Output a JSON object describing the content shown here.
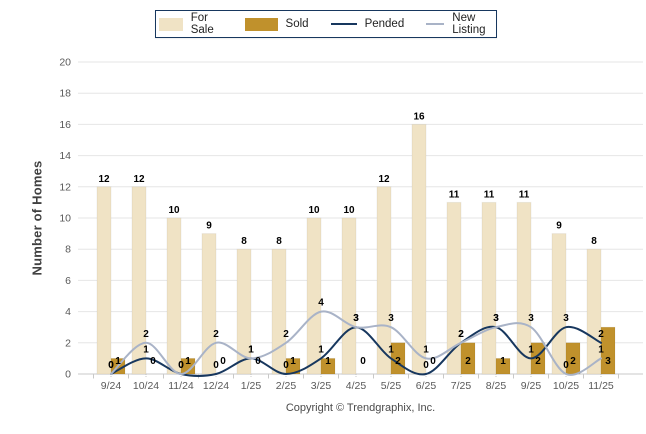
{
  "chart_data": {
    "type": "bar",
    "subtype": "grouped-bars-with-smoothed-lines",
    "title": "",
    "ylabel": "Number of Homes",
    "xlabel": "",
    "ylim": [
      0,
      20
    ],
    "ytick_step": 2,
    "grid": true,
    "legend_position": "top",
    "categories": [
      "9/24",
      "10/24",
      "11/24",
      "12/24",
      "1/25",
      "2/25",
      "3/25",
      "4/25",
      "5/25",
      "6/25",
      "7/25",
      "8/25",
      "9/25",
      "10/25",
      "11/25"
    ],
    "bar_series": [
      {
        "name": "For Sale",
        "color": "#F0E3C5",
        "values": [
          12,
          12,
          10,
          9,
          8,
          8,
          10,
          10,
          12,
          16,
          11,
          11,
          11,
          9,
          8
        ]
      },
      {
        "name": "Sold",
        "color": "#C0912C",
        "values": [
          1,
          0,
          1,
          0,
          0,
          1,
          1,
          0,
          2,
          0,
          2,
          1,
          2,
          2,
          3
        ]
      }
    ],
    "line_series": [
      {
        "name": "Pended",
        "color": "#17375E",
        "values": [
          0,
          1,
          0,
          0,
          1,
          0,
          1,
          3,
          1,
          0,
          2,
          3,
          1,
          3,
          2
        ]
      },
      {
        "name": "New Listing",
        "color": "#A9B3C7",
        "values": [
          0,
          2,
          0,
          2,
          1,
          2,
          4,
          3,
          3,
          1,
          2,
          3,
          3,
          0,
          1
        ]
      }
    ]
  },
  "footer": {
    "copyright": "Copyright © Trendgraphix, Inc."
  },
  "colors": {
    "legend_border": "#17375E",
    "grid": "#E6E6E6",
    "axis_line": "#C8C8C8",
    "axis_text": "#595959",
    "value_label": "#000000",
    "background": "#FFFFFF"
  }
}
